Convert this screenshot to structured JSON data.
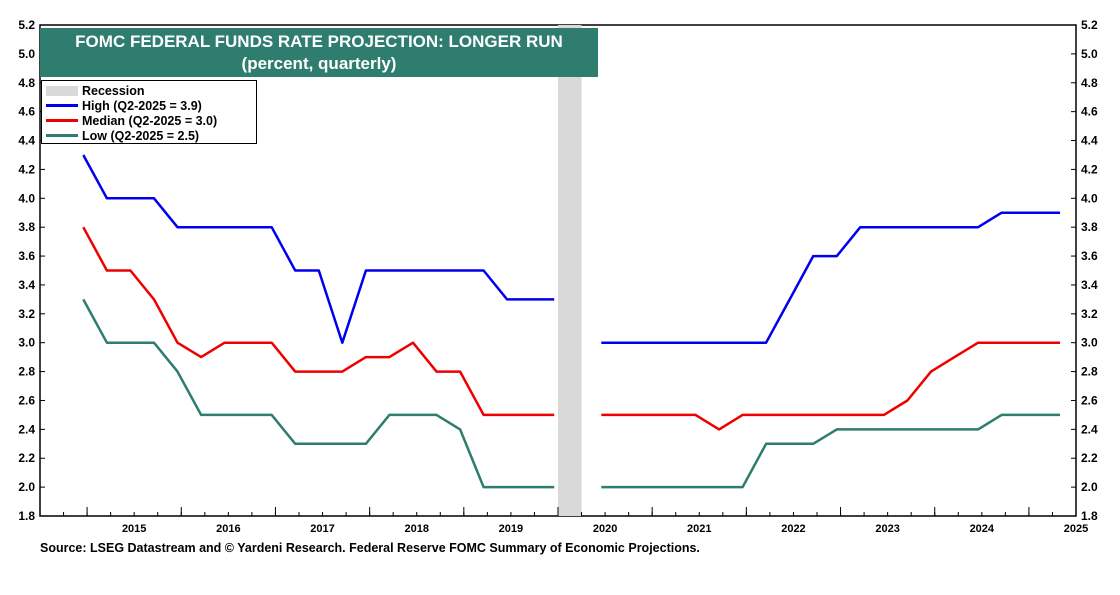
{
  "title": {
    "line1": "FOMC FEDERAL FUNDS RATE PROJECTION: LONGER RUN",
    "line2": "(percent, quarterly)"
  },
  "legend": {
    "recession": "Recession",
    "high": "High (Q2-2025 = 3.9)",
    "median": "Median (Q2-2025 = 3.0)",
    "low": "Low (Q2-2025 = 2.5)"
  },
  "source": "Source: LSEG Datastream and © Yardeni Research.  Federal Reserve FOMC Summary of Economic Projections.",
  "colors": {
    "high": "#0000ee",
    "median": "#ee0000",
    "low": "#2e7d6f",
    "recession": "#d9d9d9",
    "title_bg": "#2e7d6f"
  },
  "chart_data": {
    "type": "line",
    "title": "FOMC FEDERAL FUNDS RATE PROJECTION: LONGER RUN",
    "subtitle": "(percent, quarterly)",
    "xlabel": "",
    "ylabel": "",
    "ylim": [
      1.8,
      5.2
    ],
    "y_ticks": [
      "1.8",
      "2.0",
      "2.2",
      "2.4",
      "2.6",
      "2.8",
      "3.0",
      "3.2",
      "3.4",
      "3.6",
      "3.8",
      "4.0",
      "4.2",
      "4.4",
      "4.6",
      "4.8",
      "5.0",
      "5.2"
    ],
    "x_ticks": [
      "2015",
      "2016",
      "2017",
      "2018",
      "2019",
      "2020",
      "2021",
      "2022",
      "2023",
      "2024",
      "2025"
    ],
    "recession": {
      "start": 2020.0,
      "end": 2020.25,
      "label": "Recession"
    },
    "series": [
      {
        "name": "High (Q2-2025 = 3.9)",
        "key": "high",
        "points": [
          [
            2014.96,
            4.3
          ],
          [
            2015.21,
            4.0
          ],
          [
            2015.46,
            4.0
          ],
          [
            2015.71,
            4.0
          ],
          [
            2015.96,
            3.8
          ],
          [
            2016.21,
            3.8
          ],
          [
            2016.46,
            3.8
          ],
          [
            2016.71,
            3.8
          ],
          [
            2016.96,
            3.8
          ],
          [
            2017.21,
            3.5
          ],
          [
            2017.46,
            3.5
          ],
          [
            2017.71,
            3.0
          ],
          [
            2017.96,
            3.5
          ],
          [
            2018.21,
            3.5
          ],
          [
            2018.46,
            3.5
          ],
          [
            2018.71,
            3.5
          ],
          [
            2018.96,
            3.5
          ],
          [
            2019.21,
            3.5
          ],
          [
            2019.46,
            3.3
          ],
          [
            2019.71,
            3.3
          ],
          [
            2019.96,
            3.3
          ],
          null,
          [
            2020.46,
            3.0
          ],
          [
            2020.71,
            3.0
          ],
          [
            2020.96,
            3.0
          ],
          [
            2021.21,
            3.0
          ],
          [
            2021.46,
            3.0
          ],
          [
            2021.71,
            3.0
          ],
          [
            2021.96,
            3.0
          ],
          [
            2022.21,
            3.0
          ],
          [
            2022.46,
            3.3
          ],
          [
            2022.71,
            3.6
          ],
          [
            2022.96,
            3.6
          ],
          [
            2023.21,
            3.8
          ],
          [
            2023.46,
            3.8
          ],
          [
            2023.71,
            3.8
          ],
          [
            2023.96,
            3.8
          ],
          [
            2024.21,
            3.8
          ],
          [
            2024.46,
            3.8
          ],
          [
            2024.71,
            3.9
          ],
          [
            2024.96,
            3.9
          ],
          [
            2025.33,
            3.9
          ]
        ]
      },
      {
        "name": "Median (Q2-2025 = 3.0)",
        "key": "median",
        "points": [
          [
            2014.96,
            3.8
          ],
          [
            2015.21,
            3.5
          ],
          [
            2015.46,
            3.5
          ],
          [
            2015.71,
            3.3
          ],
          [
            2015.96,
            3.0
          ],
          [
            2016.21,
            2.9
          ],
          [
            2016.46,
            3.0
          ],
          [
            2016.71,
            3.0
          ],
          [
            2016.96,
            3.0
          ],
          [
            2017.21,
            2.8
          ],
          [
            2017.46,
            2.8
          ],
          [
            2017.71,
            2.8
          ],
          [
            2017.96,
            2.9
          ],
          [
            2018.21,
            2.9
          ],
          [
            2018.46,
            3.0
          ],
          [
            2018.71,
            2.8
          ],
          [
            2018.96,
            2.8
          ],
          [
            2019.21,
            2.5
          ],
          [
            2019.46,
            2.5
          ],
          [
            2019.71,
            2.5
          ],
          [
            2019.96,
            2.5
          ],
          null,
          [
            2020.46,
            2.5
          ],
          [
            2020.71,
            2.5
          ],
          [
            2020.96,
            2.5
          ],
          [
            2021.21,
            2.5
          ],
          [
            2021.46,
            2.5
          ],
          [
            2021.71,
            2.4
          ],
          [
            2021.96,
            2.5
          ],
          [
            2022.21,
            2.5
          ],
          [
            2022.46,
            2.5
          ],
          [
            2022.71,
            2.5
          ],
          [
            2022.96,
            2.5
          ],
          [
            2023.21,
            2.5
          ],
          [
            2023.46,
            2.5
          ],
          [
            2023.71,
            2.6
          ],
          [
            2023.96,
            2.8
          ],
          [
            2024.21,
            2.9
          ],
          [
            2024.46,
            3.0
          ],
          [
            2024.71,
            3.0
          ],
          [
            2024.96,
            3.0
          ],
          [
            2025.33,
            3.0
          ]
        ]
      },
      {
        "name": "Low (Q2-2025 = 2.5)",
        "key": "low",
        "points": [
          [
            2014.96,
            3.3
          ],
          [
            2015.21,
            3.0
          ],
          [
            2015.46,
            3.0
          ],
          [
            2015.71,
            3.0
          ],
          [
            2015.96,
            2.8
          ],
          [
            2016.21,
            2.5
          ],
          [
            2016.46,
            2.5
          ],
          [
            2016.71,
            2.5
          ],
          [
            2016.96,
            2.5
          ],
          [
            2017.21,
            2.3
          ],
          [
            2017.46,
            2.3
          ],
          [
            2017.71,
            2.3
          ],
          [
            2017.96,
            2.3
          ],
          [
            2018.21,
            2.5
          ],
          [
            2018.46,
            2.5
          ],
          [
            2018.71,
            2.5
          ],
          [
            2018.96,
            2.4
          ],
          [
            2019.21,
            2.0
          ],
          [
            2019.46,
            2.0
          ],
          [
            2019.71,
            2.0
          ],
          [
            2019.96,
            2.0
          ],
          null,
          [
            2020.46,
            2.0
          ],
          [
            2020.71,
            2.0
          ],
          [
            2020.96,
            2.0
          ],
          [
            2021.21,
            2.0
          ],
          [
            2021.46,
            2.0
          ],
          [
            2021.71,
            2.0
          ],
          [
            2021.96,
            2.0
          ],
          [
            2022.21,
            2.3
          ],
          [
            2022.46,
            2.3
          ],
          [
            2022.71,
            2.3
          ],
          [
            2022.96,
            2.4
          ],
          [
            2023.21,
            2.4
          ],
          [
            2023.46,
            2.4
          ],
          [
            2023.71,
            2.4
          ],
          [
            2023.96,
            2.4
          ],
          [
            2024.21,
            2.4
          ],
          [
            2024.46,
            2.4
          ],
          [
            2024.71,
            2.5
          ],
          [
            2024.96,
            2.5
          ],
          [
            2025.33,
            2.5
          ]
        ]
      }
    ]
  }
}
